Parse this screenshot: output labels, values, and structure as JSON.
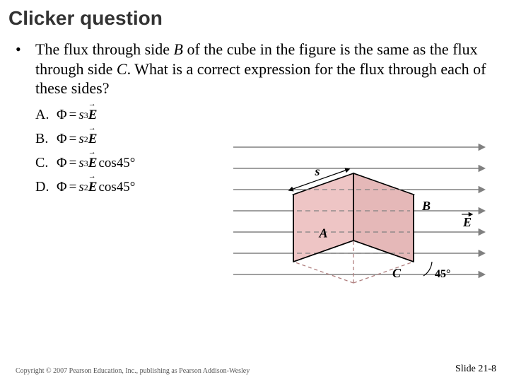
{
  "title": "Clicker question",
  "title_fontsize": 28,
  "bullet": "•",
  "question_html": "The flux through side <i>B</i> of the cube in the figure is the same as the flux through side <i>C</i>. What is a correct expression for the flux through each of these sides?",
  "options": [
    {
      "label": "A.",
      "formula_html": "<span class='phi'>Φ</span><span class='eq'>=</span><i>s</i><sup>3</sup><span class='vec'>E</span>"
    },
    {
      "label": "B.",
      "formula_html": "<span class='phi'>Φ</span><span class='eq'>=</span><i>s</i><sup>2</sup><span class='vec'>E</span>"
    },
    {
      "label": "C.",
      "formula_html": "<span class='phi'>Φ</span><span class='eq'>=</span><i>s</i><sup>3</sup><span class='vec'>E</span>cos45°"
    },
    {
      "label": "D.",
      "formula_html": "<span class='phi'>Φ</span><span class='eq'>=</span><i>s</i><sup>2</sup><span class='vec'>E</span>cos45°"
    }
  ],
  "diagram": {
    "labels": {
      "s": "s",
      "A": "A",
      "B": "B",
      "C": "C",
      "E": "E",
      "angle": "45°"
    },
    "colors": {
      "field_line": "#808080",
      "cube_fill_light": "#f5d0d0",
      "cube_fill_mid": "#eec5c5",
      "cube_fill_dark": "#e5b8b8",
      "cube_edge": "#000000",
      "hidden_edge": "#b08080",
      "text": "#000000"
    },
    "font_label_size": 18,
    "font_angle_size": 16
  },
  "footer": {
    "left": "Copyright © 2007 Pearson Education, Inc., publishing as Pearson Addison-Wesley",
    "right": "Slide 21-8"
  }
}
